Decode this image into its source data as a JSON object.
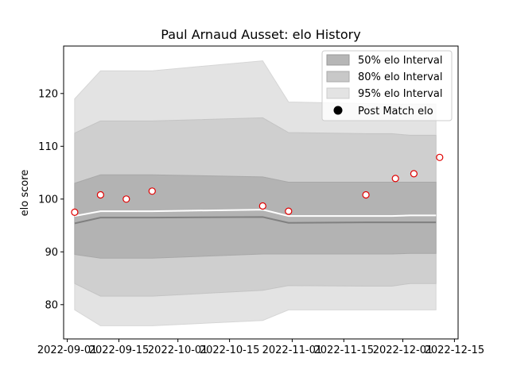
{
  "chart_data": {
    "type": "line",
    "title": "Paul Arnaud Ausset: elo History",
    "xlabel": "",
    "ylabel": "elo score",
    "x_ticks": [
      "2022-09-01",
      "2022-09-15",
      "2022-10-01",
      "2022-10-15",
      "2022-11-01",
      "2022-11-15",
      "2022-12-01",
      "2022-12-15"
    ],
    "y_ticks": [
      80,
      90,
      100,
      110,
      120
    ],
    "xlim": [
      "2022-08-31",
      "2022-12-16"
    ],
    "ylim": [
      73.5,
      129
    ],
    "grid": false,
    "legend_position": "top-right",
    "legend": [
      "50% elo Interval",
      "80% elo Interval",
      "95% elo Interval",
      "Post Match elo"
    ],
    "band_dates": [
      "2022-09-03",
      "2022-09-10",
      "2022-09-24",
      "2022-10-24",
      "2022-10-31",
      "2022-11-21",
      "2022-11-28",
      "2022-12-03",
      "2022-12-10"
    ],
    "bands": {
      "p95": {
        "lower": [
          79,
          76,
          76,
          77,
          79,
          79,
          79,
          79,
          79
        ],
        "upper": [
          119,
          124.3,
          124.3,
          126.2,
          118.4,
          118.1,
          118,
          118,
          118
        ]
      },
      "p80": {
        "lower": [
          84,
          81.6,
          81.6,
          82.7,
          83.6,
          83.5,
          83.5,
          84,
          84
        ],
        "upper": [
          112.5,
          114.8,
          114.8,
          115.4,
          112.6,
          112.4,
          112.4,
          112.1,
          112.1
        ]
      },
      "p50": {
        "lower": [
          89.5,
          88.8,
          88.8,
          89.6,
          89.6,
          89.6,
          89.6,
          89.7,
          89.7
        ],
        "upper": [
          103,
          104.6,
          104.6,
          104.2,
          103.2,
          103.2,
          103.2,
          103.2,
          103.2
        ]
      }
    },
    "series": [
      {
        "name": "median",
        "x": [
          "2022-09-03",
          "2022-09-10",
          "2022-09-24",
          "2022-10-24",
          "2022-10-31",
          "2022-11-21",
          "2022-11-28",
          "2022-12-03",
          "2022-12-10"
        ],
        "values": [
          95.4,
          96.5,
          96.5,
          96.6,
          95.5,
          95.6,
          95.6,
          95.6,
          95.6
        ]
      },
      {
        "name": "mean",
        "x": [
          "2022-09-03",
          "2022-09-10",
          "2022-09-24",
          "2022-10-24",
          "2022-10-31",
          "2022-11-21",
          "2022-11-28",
          "2022-12-03",
          "2022-12-10"
        ],
        "values": [
          96.8,
          97.7,
          97.7,
          98,
          96.8,
          96.8,
          96.8,
          96.9,
          96.9
        ]
      },
      {
        "name": "Post Match elo",
        "x": [
          "2022-09-03",
          "2022-09-10",
          "2022-09-17",
          "2022-09-24",
          "2022-10-24",
          "2022-10-31",
          "2022-11-21",
          "2022-11-29",
          "2022-12-04",
          "2022-12-11"
        ],
        "values": [
          97.5,
          100.8,
          100,
          101.5,
          98.7,
          97.7,
          100.8,
          103.9,
          104.8,
          107.9
        ]
      }
    ]
  }
}
